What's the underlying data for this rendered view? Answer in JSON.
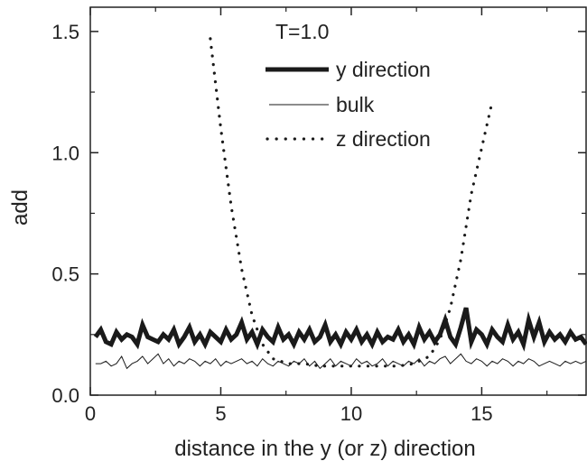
{
  "chart_data": {
    "type": "line",
    "annotation": "T=1.0",
    "xlabel": "distance in the y (or z) direction",
    "ylabel": "add",
    "xlim": [
      0,
      19
    ],
    "ylim": [
      0,
      1.6
    ],
    "xticks": [
      0,
      5,
      10,
      15
    ],
    "xtick_labels": [
      "0",
      "5",
      "10",
      "15"
    ],
    "yticks": [
      0.0,
      0.5,
      1.0,
      1.5
    ],
    "ytick_labels": [
      "0.0",
      "0.5",
      "1.0",
      "1.5"
    ],
    "grid": false,
    "legend": "top-center",
    "series": [
      {
        "name": "y direction",
        "style": "thick-solid",
        "color": "#1a1a1a",
        "points": [
          [
            0.2,
            0.24
          ],
          [
            0.4,
            0.27
          ],
          [
            0.6,
            0.22
          ],
          [
            0.8,
            0.21
          ],
          [
            1.0,
            0.26
          ],
          [
            1.2,
            0.23
          ],
          [
            1.4,
            0.25
          ],
          [
            1.6,
            0.24
          ],
          [
            1.8,
            0.21
          ],
          [
            2.0,
            0.29
          ],
          [
            2.2,
            0.24
          ],
          [
            2.4,
            0.23
          ],
          [
            2.6,
            0.22
          ],
          [
            2.8,
            0.25
          ],
          [
            3.0,
            0.23
          ],
          [
            3.2,
            0.27
          ],
          [
            3.4,
            0.21
          ],
          [
            3.6,
            0.24
          ],
          [
            3.8,
            0.28
          ],
          [
            4.0,
            0.22
          ],
          [
            4.2,
            0.25
          ],
          [
            4.4,
            0.21
          ],
          [
            4.6,
            0.26
          ],
          [
            4.8,
            0.24
          ],
          [
            5.0,
            0.22
          ],
          [
            5.2,
            0.27
          ],
          [
            5.4,
            0.23
          ],
          [
            5.6,
            0.25
          ],
          [
            5.8,
            0.3
          ],
          [
            6.0,
            0.23
          ],
          [
            6.2,
            0.26
          ],
          [
            6.4,
            0.21
          ],
          [
            6.6,
            0.27
          ],
          [
            6.8,
            0.24
          ],
          [
            7.0,
            0.22
          ],
          [
            7.2,
            0.28
          ],
          [
            7.4,
            0.23
          ],
          [
            7.6,
            0.25
          ],
          [
            7.8,
            0.21
          ],
          [
            8.0,
            0.26
          ],
          [
            8.2,
            0.23
          ],
          [
            8.4,
            0.27
          ],
          [
            8.6,
            0.22
          ],
          [
            8.8,
            0.24
          ],
          [
            9.0,
            0.29
          ],
          [
            9.2,
            0.22
          ],
          [
            9.4,
            0.25
          ],
          [
            9.6,
            0.21
          ],
          [
            9.8,
            0.26
          ],
          [
            10.0,
            0.23
          ],
          [
            10.2,
            0.27
          ],
          [
            10.4,
            0.22
          ],
          [
            10.6,
            0.25
          ],
          [
            10.8,
            0.21
          ],
          [
            11.0,
            0.26
          ],
          [
            11.2,
            0.22
          ],
          [
            11.4,
            0.24
          ],
          [
            11.6,
            0.23
          ],
          [
            11.8,
            0.27
          ],
          [
            12.0,
            0.22
          ],
          [
            12.2,
            0.25
          ],
          [
            12.4,
            0.21
          ],
          [
            12.6,
            0.28
          ],
          [
            12.8,
            0.23
          ],
          [
            13.0,
            0.26
          ],
          [
            13.2,
            0.22
          ],
          [
            13.4,
            0.25
          ],
          [
            13.6,
            0.31
          ],
          [
            13.8,
            0.24
          ],
          [
            14.0,
            0.21
          ],
          [
            14.2,
            0.28
          ],
          [
            14.4,
            0.36
          ],
          [
            14.6,
            0.22
          ],
          [
            14.8,
            0.27
          ],
          [
            15.0,
            0.25
          ],
          [
            15.2,
            0.21
          ],
          [
            15.4,
            0.27
          ],
          [
            15.6,
            0.24
          ],
          [
            15.8,
            0.22
          ],
          [
            16.0,
            0.29
          ],
          [
            16.2,
            0.23
          ],
          [
            16.4,
            0.26
          ],
          [
            16.6,
            0.21
          ],
          [
            16.8,
            0.31
          ],
          [
            17.0,
            0.24
          ],
          [
            17.2,
            0.3
          ],
          [
            17.4,
            0.22
          ],
          [
            17.6,
            0.26
          ],
          [
            17.8,
            0.23
          ],
          [
            18.0,
            0.25
          ],
          [
            18.2,
            0.22
          ],
          [
            18.4,
            0.26
          ],
          [
            18.6,
            0.23
          ],
          [
            18.8,
            0.24
          ],
          [
            19.0,
            0.21
          ]
        ]
      },
      {
        "name": "bulk",
        "style": "thin-solid",
        "color": "#1a1a1a",
        "points": [
          [
            0.2,
            0.13
          ],
          [
            0.4,
            0.13
          ],
          [
            0.6,
            0.14
          ],
          [
            0.8,
            0.12
          ],
          [
            1.0,
            0.13
          ],
          [
            1.2,
            0.16
          ],
          [
            1.4,
            0.11
          ],
          [
            1.6,
            0.13
          ],
          [
            1.8,
            0.14
          ],
          [
            2.0,
            0.16
          ],
          [
            2.2,
            0.13
          ],
          [
            2.4,
            0.15
          ],
          [
            2.6,
            0.17
          ],
          [
            2.8,
            0.13
          ],
          [
            3.0,
            0.15
          ],
          [
            3.2,
            0.12
          ],
          [
            3.4,
            0.14
          ],
          [
            3.6,
            0.13
          ],
          [
            3.8,
            0.15
          ],
          [
            4.0,
            0.14
          ],
          [
            4.2,
            0.12
          ],
          [
            4.4,
            0.14
          ],
          [
            4.6,
            0.13
          ],
          [
            4.8,
            0.15
          ],
          [
            5.0,
            0.12
          ],
          [
            5.2,
            0.14
          ],
          [
            5.4,
            0.13
          ],
          [
            5.6,
            0.14
          ],
          [
            5.8,
            0.15
          ],
          [
            6.0,
            0.13
          ],
          [
            6.2,
            0.14
          ],
          [
            6.4,
            0.12
          ],
          [
            6.6,
            0.15
          ],
          [
            6.8,
            0.13
          ],
          [
            7.0,
            0.12
          ],
          [
            7.2,
            0.14
          ],
          [
            7.4,
            0.13
          ],
          [
            7.6,
            0.12
          ],
          [
            7.8,
            0.14
          ],
          [
            8.0,
            0.13
          ],
          [
            8.2,
            0.15
          ],
          [
            8.4,
            0.12
          ],
          [
            8.6,
            0.14
          ],
          [
            8.8,
            0.11
          ],
          [
            9.0,
            0.13
          ],
          [
            9.2,
            0.15
          ],
          [
            9.4,
            0.12
          ],
          [
            9.6,
            0.14
          ],
          [
            9.8,
            0.13
          ],
          [
            10.0,
            0.12
          ],
          [
            10.2,
            0.15
          ],
          [
            10.4,
            0.13
          ],
          [
            10.6,
            0.14
          ],
          [
            10.8,
            0.12
          ],
          [
            11.0,
            0.13
          ],
          [
            11.2,
            0.15
          ],
          [
            11.4,
            0.12
          ],
          [
            11.6,
            0.14
          ],
          [
            11.8,
            0.13
          ],
          [
            12.0,
            0.12
          ],
          [
            12.2,
            0.14
          ],
          [
            12.4,
            0.13
          ],
          [
            12.6,
            0.15
          ],
          [
            12.8,
            0.12
          ],
          [
            13.0,
            0.14
          ],
          [
            13.2,
            0.13
          ],
          [
            13.4,
            0.15
          ],
          [
            13.6,
            0.16
          ],
          [
            13.8,
            0.13
          ],
          [
            14.0,
            0.15
          ],
          [
            14.2,
            0.17
          ],
          [
            14.4,
            0.14
          ],
          [
            14.6,
            0.13
          ],
          [
            14.8,
            0.15
          ],
          [
            15.0,
            0.14
          ],
          [
            15.2,
            0.12
          ],
          [
            15.4,
            0.14
          ],
          [
            15.6,
            0.13
          ],
          [
            15.8,
            0.15
          ],
          [
            16.0,
            0.14
          ],
          [
            16.2,
            0.12
          ],
          [
            16.4,
            0.14
          ],
          [
            16.6,
            0.13
          ],
          [
            16.8,
            0.15
          ],
          [
            17.0,
            0.14
          ],
          [
            17.2,
            0.12
          ],
          [
            17.4,
            0.13
          ],
          [
            17.6,
            0.14
          ],
          [
            17.8,
            0.13
          ],
          [
            18.0,
            0.12
          ],
          [
            18.2,
            0.14
          ],
          [
            18.4,
            0.13
          ],
          [
            18.6,
            0.14
          ],
          [
            18.8,
            0.13
          ],
          [
            19.0,
            0.14
          ]
        ]
      },
      {
        "name": "z direction",
        "style": "dotted",
        "color": "#1a1a1a",
        "points": [
          [
            4.6,
            1.47
          ],
          [
            5.0,
            1.1
          ],
          [
            5.4,
            0.78
          ],
          [
            5.8,
            0.52
          ],
          [
            6.2,
            0.33
          ],
          [
            6.6,
            0.21
          ],
          [
            7.0,
            0.15
          ],
          [
            7.6,
            0.13
          ],
          [
            8.2,
            0.13
          ],
          [
            8.8,
            0.12
          ],
          [
            9.4,
            0.12
          ],
          [
            10.0,
            0.12
          ],
          [
            10.6,
            0.12
          ],
          [
            11.2,
            0.12
          ],
          [
            11.8,
            0.12
          ],
          [
            12.4,
            0.13
          ],
          [
            13.0,
            0.16
          ],
          [
            13.4,
            0.23
          ],
          [
            13.8,
            0.36
          ],
          [
            14.2,
            0.56
          ],
          [
            14.6,
            0.83
          ],
          [
            15.0,
            1.02
          ],
          [
            15.4,
            1.21
          ]
        ]
      }
    ]
  }
}
